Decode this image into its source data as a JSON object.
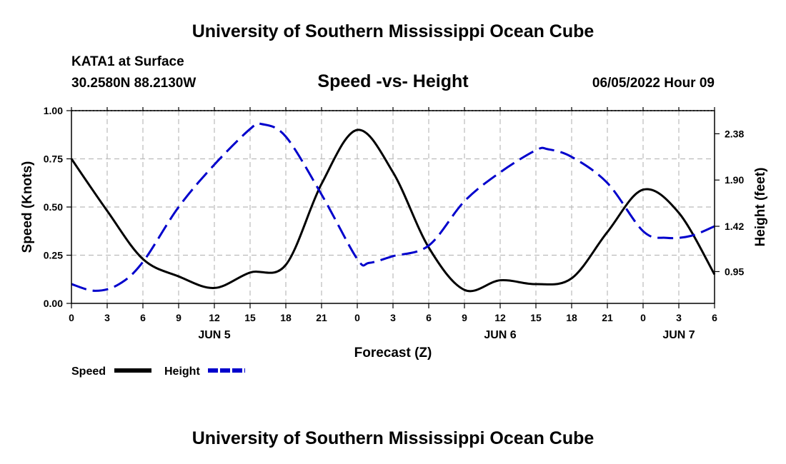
{
  "header": {
    "title": "University of Southern Mississippi Ocean Cube",
    "station": "KATA1 at Surface",
    "coords": "30.2580N  88.2130W",
    "chart_title": "Speed -vs- Height",
    "datetime": "06/05/2022 Hour 09"
  },
  "footer": {
    "title": "University of Southern Mississippi Ocean Cube"
  },
  "colors": {
    "speed": "#000000",
    "height": "#0000cc",
    "grid": "#bbbbbb"
  },
  "chart_data": {
    "type": "line",
    "title": "Speed -vs- Height",
    "xlabel": "Forecast (Z)",
    "ylabel": "Speed (Knots)",
    "y2label": "Height (feet)",
    "x_range": [
      0,
      54
    ],
    "ylim": [
      0,
      1.0
    ],
    "y2lim": [
      0.62,
      2.62
    ],
    "x_ticks": [
      0,
      3,
      6,
      9,
      12,
      15,
      18,
      21,
      24,
      27,
      30,
      33,
      36,
      39,
      42,
      45,
      48,
      51,
      54
    ],
    "x_tick_labels": [
      "0",
      "3",
      "6",
      "9",
      "12",
      "15",
      "18",
      "21",
      "0",
      "3",
      "6",
      "9",
      "12",
      "15",
      "18",
      "21",
      "0",
      "3",
      "6"
    ],
    "day_labels": [
      {
        "x": 12,
        "label": "JUN 5"
      },
      {
        "x": 36,
        "label": "JUN 6"
      },
      {
        "x": 51,
        "label": "JUN 7"
      }
    ],
    "y_ticks": [
      0.0,
      0.25,
      0.5,
      0.75,
      1.0
    ],
    "y_tick_labels": [
      "0.00",
      "0.25",
      "0.50",
      "0.75",
      "1.00"
    ],
    "y2_ticks": [
      0.95,
      1.42,
      1.9,
      2.38
    ],
    "y2_tick_labels": [
      "0.95",
      "1.42",
      "1.90",
      "2.38"
    ],
    "grid": true,
    "series": [
      {
        "name": "Speed",
        "axis": "left",
        "x": [
          0,
          3,
          6,
          9,
          12,
          15,
          18,
          21,
          24,
          27,
          30,
          33,
          36,
          39,
          42,
          45,
          48,
          51,
          54
        ],
        "values": [
          0.75,
          0.48,
          0.23,
          0.14,
          0.08,
          0.16,
          0.2,
          0.62,
          0.9,
          0.68,
          0.29,
          0.07,
          0.12,
          0.1,
          0.13,
          0.37,
          0.59,
          0.47,
          0.15
        ]
      },
      {
        "name": "Height",
        "axis": "right",
        "x": [
          0,
          2,
          4,
          6,
          9,
          12,
          15,
          16,
          18,
          21,
          24,
          25,
          27,
          30,
          33,
          36,
          39,
          40,
          42,
          45,
          48,
          50,
          52,
          54
        ],
        "values": [
          0.82,
          0.75,
          0.82,
          1.05,
          1.62,
          2.06,
          2.43,
          2.48,
          2.35,
          1.75,
          1.08,
          1.04,
          1.11,
          1.22,
          1.68,
          1.98,
          2.21,
          2.22,
          2.14,
          1.87,
          1.37,
          1.3,
          1.32,
          1.42
        ]
      }
    ],
    "legend": [
      {
        "label": "Speed",
        "series": "Speed"
      },
      {
        "label": "Height",
        "series": "Height"
      }
    ],
    "legend_position": "bottom-left"
  }
}
